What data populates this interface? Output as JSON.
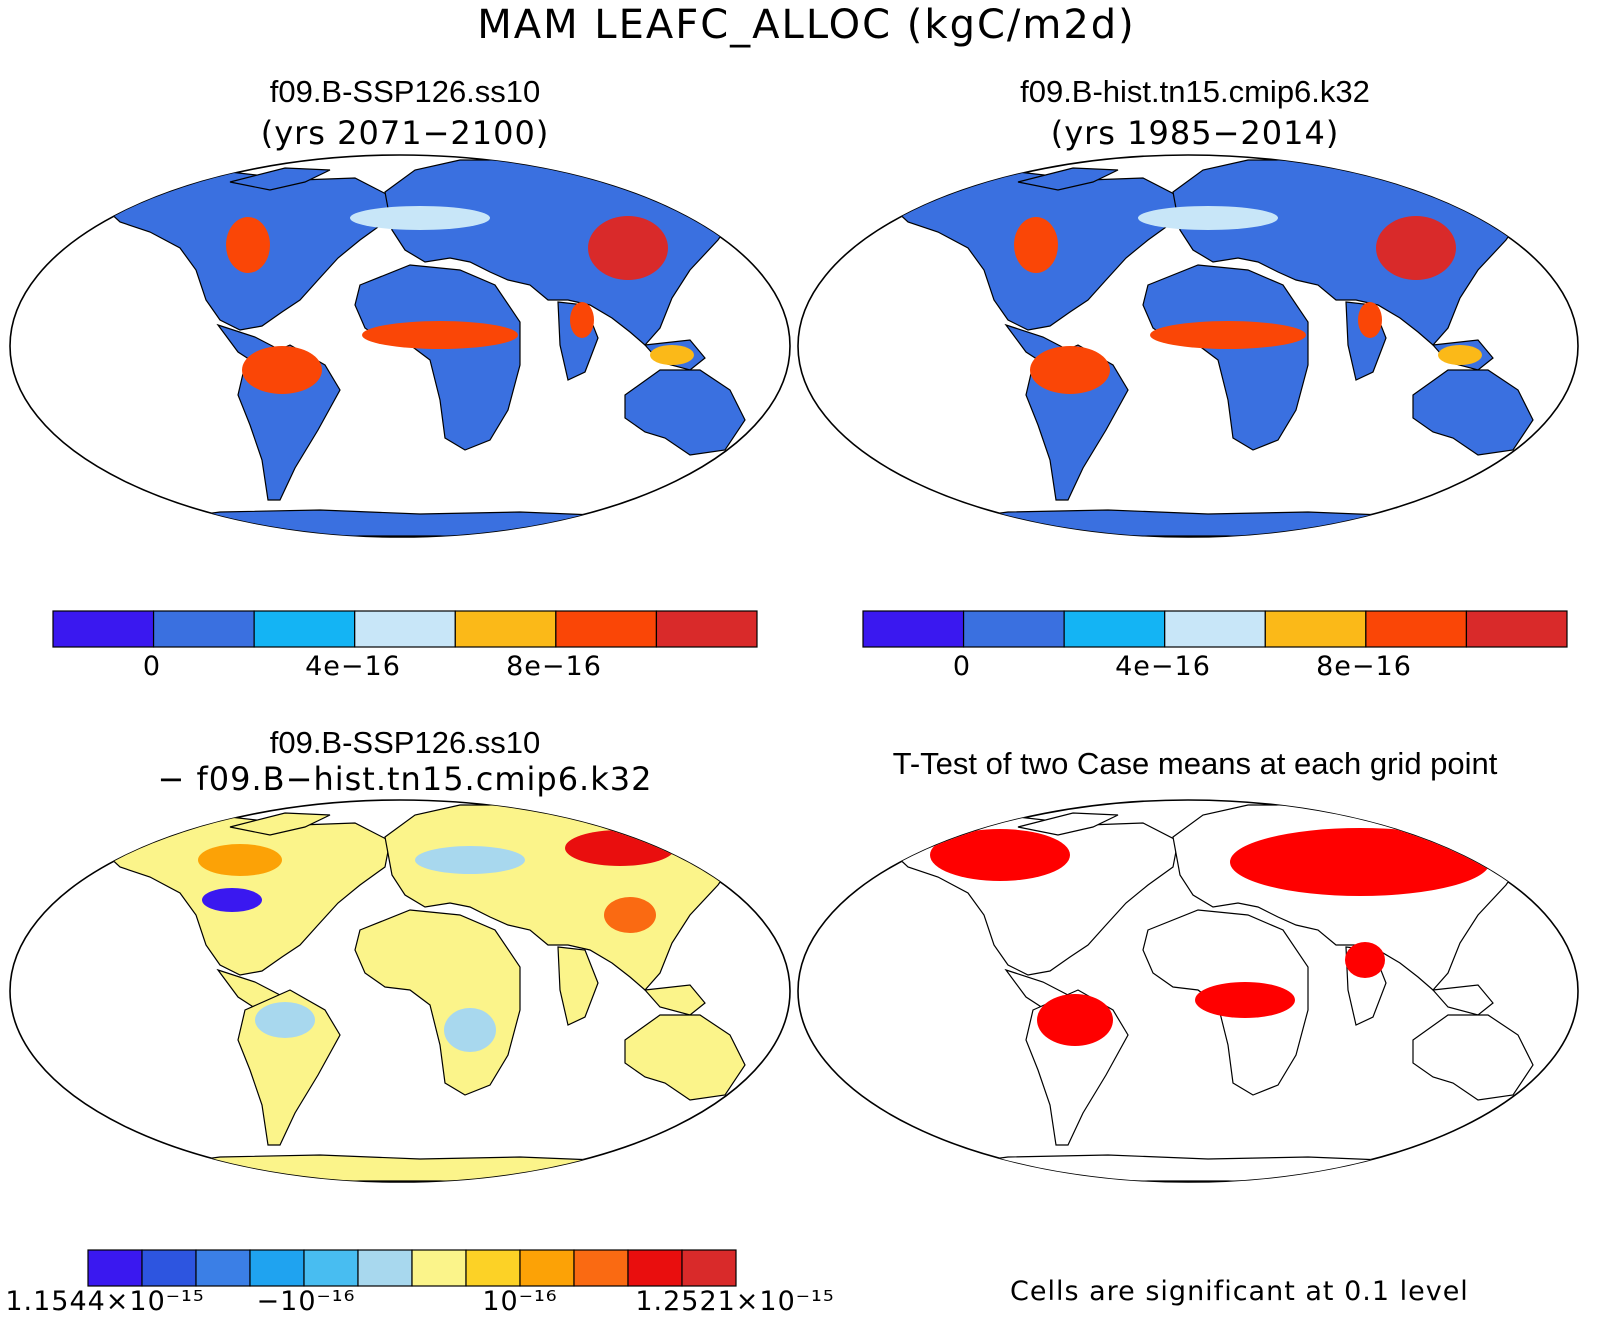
{
  "title": "MAM LEAFC_ALLOC (kgC/m2d)",
  "panels": {
    "top_left": {
      "title": "f09.B-SSP126.ss10",
      "subtitle": "(yrs 2071−2100)"
    },
    "top_right": {
      "title": "f09.B-hist.tn15.cmip6.k32",
      "subtitle": "(yrs 1985−2014)"
    },
    "bottom_left": {
      "title": "f09.B-SSP126.ss10",
      "subtitle": "− f09.B−hist.tn15.cmip6.k32"
    },
    "bottom_right": {
      "title": "T-Test of two Case means at each grid point",
      "note": "Cells are significant at 0.1 level"
    }
  },
  "colorbar_abs": {
    "colors": [
      "#3a18f0",
      "#3a70e0",
      "#14b4f4",
      "#c8e6f8",
      "#fbb918",
      "#fa4606",
      "#d92a2a"
    ],
    "labels": [
      "0",
      "4e−16",
      "8e−16"
    ]
  },
  "colorbar_diff": {
    "colors": [
      "#3a18f0",
      "#2d55e0",
      "#3b7fe6",
      "#1fa3f0",
      "#48bdf1",
      "#a8d8ee",
      "#fbf48a",
      "#fcd226",
      "#fca206",
      "#fa6a12",
      "#e90e0e",
      "#d92a2a"
    ],
    "labels": [
      "1.1544×10⁻¹⁵",
      "−10⁻¹⁶",
      "10⁻¹⁶",
      "1.2521×10⁻¹⁵"
    ]
  },
  "map_colors": {
    "ocean": "#ffffff",
    "abs_land": "#3a70e0",
    "abs_tropics": "#fa4606",
    "abs_hot": "#d92a2a",
    "abs_mid": "#c8e6f8",
    "abs_warm": "#fbb918",
    "diff_land": "#fbf48a",
    "diff_neg": "#a8d8ee",
    "diff_strong_neg": "#3a18f0",
    "diff_pos": "#fca206",
    "diff_strong_pos": "#e90e0e",
    "ttest_sig": "#ff0000"
  }
}
